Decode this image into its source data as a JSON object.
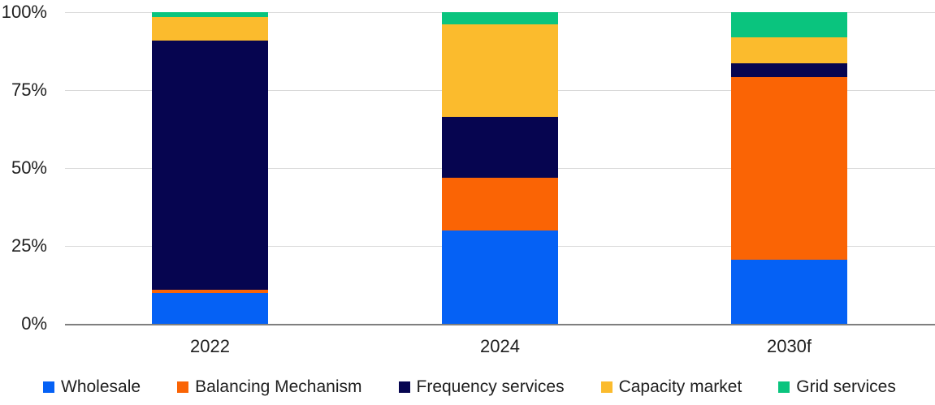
{
  "chart_data": {
    "type": "bar",
    "variant": "stacked-100-percent",
    "title": "",
    "xlabel": "",
    "ylabel": "",
    "ylim": [
      0,
      100
    ],
    "grid": true,
    "legend_position": "bottom",
    "categories": [
      "2022",
      "2024",
      "2030f"
    ],
    "y_ticks": [
      {
        "value": 100,
        "label": "100%"
      },
      {
        "value": 75,
        "label": "75%"
      },
      {
        "value": 50,
        "label": "50%"
      },
      {
        "value": 25,
        "label": "25%"
      },
      {
        "value": 0,
        "label": "0%"
      }
    ],
    "series": [
      {
        "name": "Wholesale",
        "color": "#0561f5",
        "values": [
          10,
          30,
          20.5
        ]
      },
      {
        "name": "Balancing Mechanism",
        "color": "#fa6405",
        "values": [
          1,
          17,
          58.8
        ]
      },
      {
        "name": "Frequency services",
        "color": "#060550",
        "values": [
          80,
          19.5,
          4.2
        ]
      },
      {
        "name": "Capacity market",
        "color": "#fbbb2d",
        "values": [
          7.5,
          29.5,
          8.5
        ]
      },
      {
        "name": "Grid services",
        "color": "#0ac47e",
        "values": [
          1.5,
          4,
          8
        ]
      }
    ]
  },
  "style_colors": {
    "gridline": "#d9d9d9",
    "axis_line": "#7f7f7f",
    "text": "#1f1f1f",
    "background": "#ffffff"
  }
}
